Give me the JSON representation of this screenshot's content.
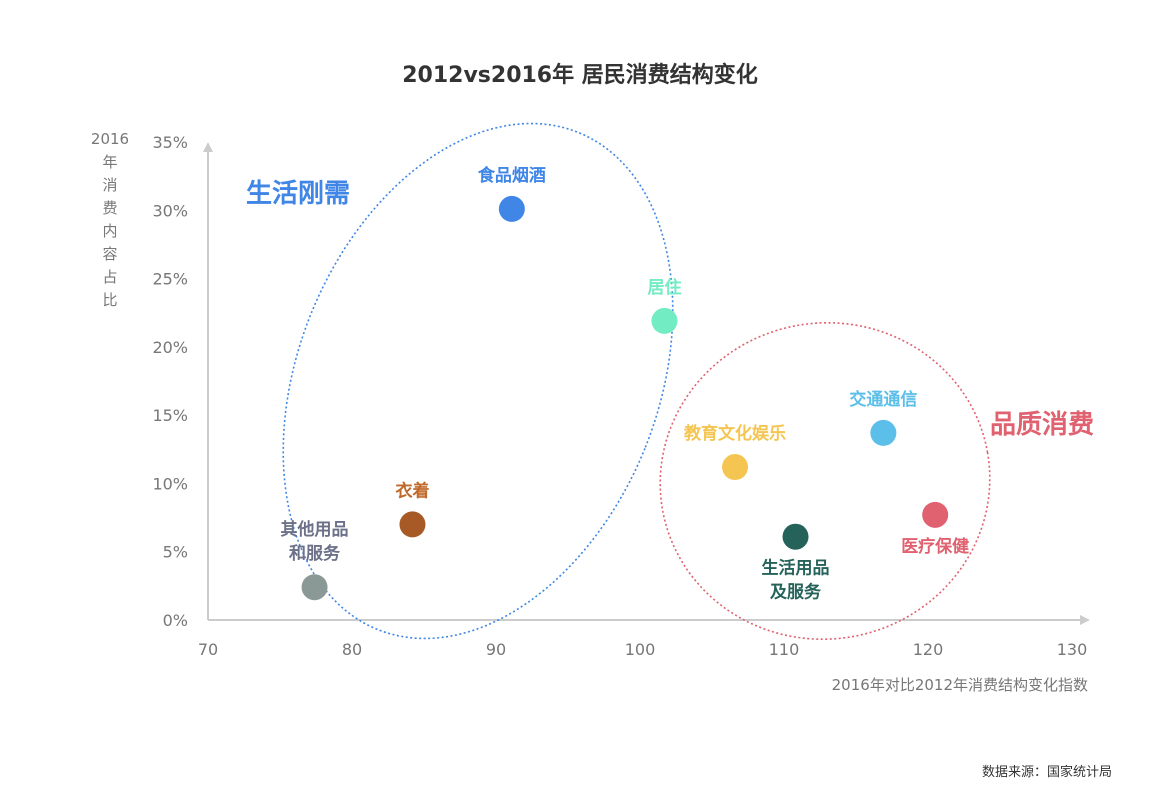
{
  "chart_data": {
    "type": "scatter",
    "title": "2012vs2016年 居民消费结构变化",
    "xlabel": "2016年对比2012年消费结构变化指数",
    "ylabel": "2016年消费内容占比",
    "ylabel_chars": [
      "2016",
      "年",
      "消",
      "费",
      "内",
      "容",
      "占",
      "比"
    ],
    "xlim": [
      70,
      130
    ],
    "ylim": [
      0,
      35
    ],
    "x_ticks": [
      "70",
      "80",
      "90",
      "100",
      "110",
      "120",
      "130"
    ],
    "y_ticks": [
      "0%",
      "5%",
      "10%",
      "15%",
      "20%",
      "25%",
      "30%",
      "35%"
    ],
    "grid": false,
    "groups": [
      {
        "name": "生活刚需",
        "color": "#3f86e6"
      },
      {
        "name": "品质消费",
        "color": "#e0616f"
      }
    ],
    "points": [
      {
        "label": [
          "食品烟酒"
        ],
        "x": 91.1,
        "y": 30.1,
        "color": "#3f86e6",
        "label_pos": "above"
      },
      {
        "label": [
          "居住"
        ],
        "x": 101.7,
        "y": 21.9,
        "color": "#72ecc3",
        "label_pos": "above"
      },
      {
        "label": [
          "交通通信"
        ],
        "x": 116.9,
        "y": 13.7,
        "color": "#5cbfea",
        "label_pos": "above"
      },
      {
        "label": [
          "教育文化娱乐"
        ],
        "x": 106.6,
        "y": 11.2,
        "color": "#f4c551",
        "label_pos": "above"
      },
      {
        "label": [
          "医疗保健"
        ],
        "x": 120.5,
        "y": 7.7,
        "color": "#e0616f",
        "label_pos": "below"
      },
      {
        "label": [
          "生活用品",
          "及服务"
        ],
        "x": 110.8,
        "y": 6.1,
        "color": "#25625a",
        "label_pos": "below"
      },
      {
        "label": [
          "衣着"
        ],
        "x": 84.2,
        "y": 7.0,
        "color": "#a85a26",
        "label_pos": "above"
      },
      {
        "label": [
          "其他用品",
          "和服务"
        ],
        "x": 77.4,
        "y": 2.4,
        "color": "#8a9995",
        "label_pos": "above"
      }
    ],
    "label_colors": {
      "其他用品": "#6c7189",
      "衣着": "#c0682a"
    }
  },
  "source": "数据来源：国家统计局"
}
